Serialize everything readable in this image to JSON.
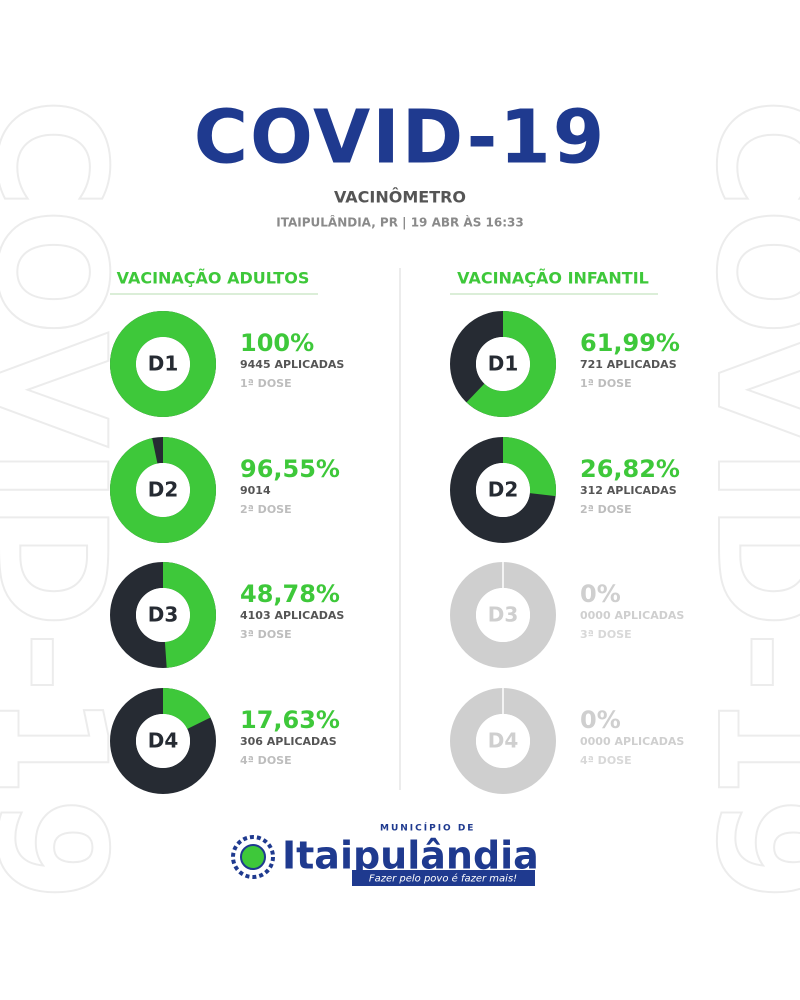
{
  "header": {
    "title": "COVID-19",
    "subtitle": "VACINÔMETRO",
    "location": "ITAIPULÂNDIA, PR | 19 ABR ÀS 16:33"
  },
  "sections": [
    {
      "title": "VACINAÇÃO ADULTOS",
      "doses": [
        {
          "label": "D1",
          "percent": 100,
          "percent_label": "100%",
          "applied": "9445 APLICADAS",
          "dose": "1ª DOSE"
        },
        {
          "label": "D2",
          "percent": 96.55,
          "percent_label": "96,55%",
          "applied": "9014",
          "dose": "2ª DOSE"
        },
        {
          "label": "D3",
          "percent": 48.78,
          "percent_label": "48,78%",
          "applied": "4103 APLICADAS",
          "dose": "3ª DOSE"
        },
        {
          "label": "D4",
          "percent": 17.63,
          "percent_label": "17,63%",
          "applied": "306 APLICADAS",
          "dose": "4ª DOSE"
        }
      ]
    },
    {
      "title": "VACINAÇÃO INFANTIL",
      "doses": [
        {
          "label": "D1",
          "percent": 61.99,
          "percent_label": "61,99%",
          "applied": "721 APLICADAS",
          "dose": "1ª DOSE"
        },
        {
          "label": "D2",
          "percent": 26.82,
          "percent_label": "26,82%",
          "applied": "312 APLICADAS",
          "dose": "2ª DOSE"
        },
        {
          "label": "D3",
          "percent": 0,
          "percent_label": "0%",
          "applied": "0000 APLICADAS",
          "dose": "3ª DOSE"
        },
        {
          "label": "D4",
          "percent": 0,
          "percent_label": "0%",
          "applied": "0000 APLICADAS",
          "dose": "4ª DOSE"
        }
      ]
    }
  ],
  "footer": {
    "prefix": "MUNICÍPIO DE",
    "name": "Itaipulândia",
    "slogan": "Fazer pelo povo é fazer mais!"
  }
}
